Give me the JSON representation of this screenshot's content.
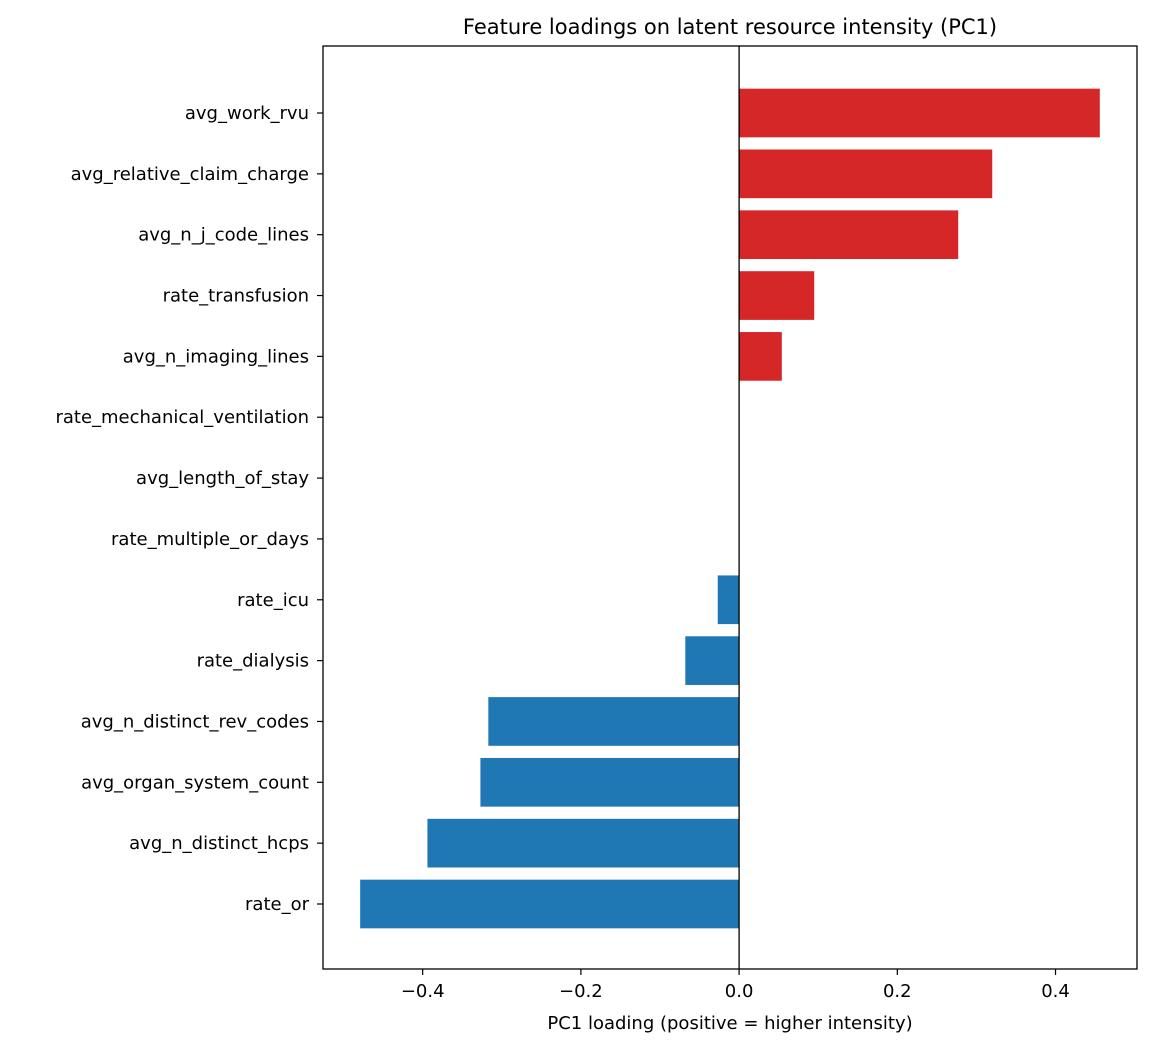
{
  "chart_data": {
    "type": "bar",
    "orientation": "horizontal",
    "title": "Feature loadings on latent resource intensity (PC1)",
    "xlabel": "PC1 loading (positive = higher intensity)",
    "ylabel": "",
    "xlim": [
      -0.526,
      0.503
    ],
    "xticks": [
      -0.4,
      -0.2,
      0.0,
      0.2,
      0.4
    ],
    "xtick_labels": [
      "−0.4",
      "−0.2",
      "0.0",
      "0.2",
      "0.4"
    ],
    "grid": false,
    "zero_line": true,
    "colors": {
      "positive": "#d62728",
      "negative": "#1f77b4"
    },
    "categories": [
      "avg_work_rvu",
      "avg_relative_claim_charge",
      "avg_n_j_code_lines",
      "rate_transfusion",
      "avg_n_imaging_lines",
      "rate_mechanical_ventilation",
      "avg_length_of_stay",
      "rate_multiple_or_days",
      "rate_icu",
      "rate_dialysis",
      "avg_n_distinct_rev_codes",
      "avg_organ_system_count",
      "avg_n_distinct_hcps",
      "rate_or"
    ],
    "values": [
      0.456,
      0.32,
      0.277,
      0.095,
      0.054,
      0.0,
      0.0,
      0.0,
      -0.027,
      -0.068,
      -0.317,
      -0.327,
      -0.394,
      -0.479
    ]
  }
}
